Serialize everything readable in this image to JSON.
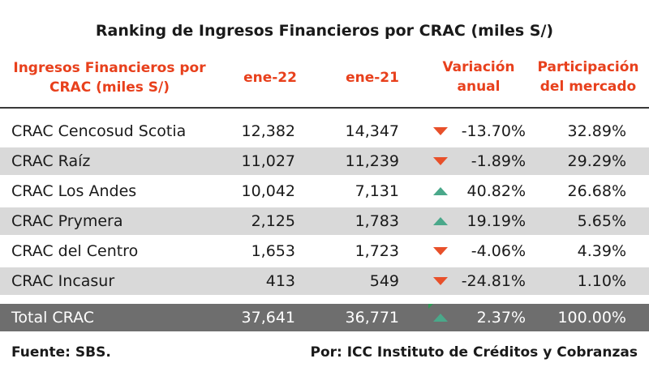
{
  "chart_data": {
    "type": "table",
    "title": "Ranking de Ingresos Financieros por CRAC (miles S/)",
    "columns": [
      "Ingresos Financieros por CRAC (miles S/)",
      "ene-22",
      "ene-21",
      "Variación anual",
      "Participación del mercado"
    ],
    "rows": [
      {
        "name": "CRAC Cencosud Scotia",
        "ene22": "12,382",
        "ene21": "14,347",
        "trend": "down",
        "variation": "-13.70%",
        "share": "32.89%"
      },
      {
        "name": "CRAC Raíz",
        "ene22": "11,027",
        "ene21": "11,239",
        "trend": "down",
        "variation": "-1.89%",
        "share": "29.29%"
      },
      {
        "name": "CRAC Los Andes",
        "ene22": "10,042",
        "ene21": "7,131",
        "trend": "up",
        "variation": "40.82%",
        "share": "26.68%"
      },
      {
        "name": "CRAC Prymera",
        "ene22": "2,125",
        "ene21": "1,783",
        "trend": "up",
        "variation": "19.19%",
        "share": "5.65%"
      },
      {
        "name": "CRAC del Centro",
        "ene22": "1,653",
        "ene21": "1,723",
        "trend": "down",
        "variation": "-4.06%",
        "share": "4.39%"
      },
      {
        "name": "CRAC Incasur",
        "ene22": "413",
        "ene21": "549",
        "trend": "down",
        "variation": "-24.81%",
        "share": "1.10%"
      }
    ],
    "total": {
      "name": "Total CRAC",
      "ene22": "37,641",
      "ene21": "36,771",
      "trend": "up",
      "variation": "2.37%",
      "share": "100.00%"
    }
  },
  "header": {
    "col0_line1": "Ingresos Financieros por",
    "col0_line2": "CRAC (miles S/)",
    "col1": "ene-22",
    "col2": "ene-21",
    "col3_line1": "Variación",
    "col3_line2": "anual",
    "col4_line1": "Participación",
    "col4_line2": "del mercado"
  },
  "footer": {
    "source": "Fuente: SBS.",
    "credit": "Por: ICC Instituto de Créditos y Cobranzas"
  },
  "colors": {
    "header_text": "#e8401c",
    "down_arrow": "#e8502a",
    "up_arrow": "#4aa88a",
    "alt_row": "#d9d9d9",
    "total_row": "#6e6e6e"
  }
}
